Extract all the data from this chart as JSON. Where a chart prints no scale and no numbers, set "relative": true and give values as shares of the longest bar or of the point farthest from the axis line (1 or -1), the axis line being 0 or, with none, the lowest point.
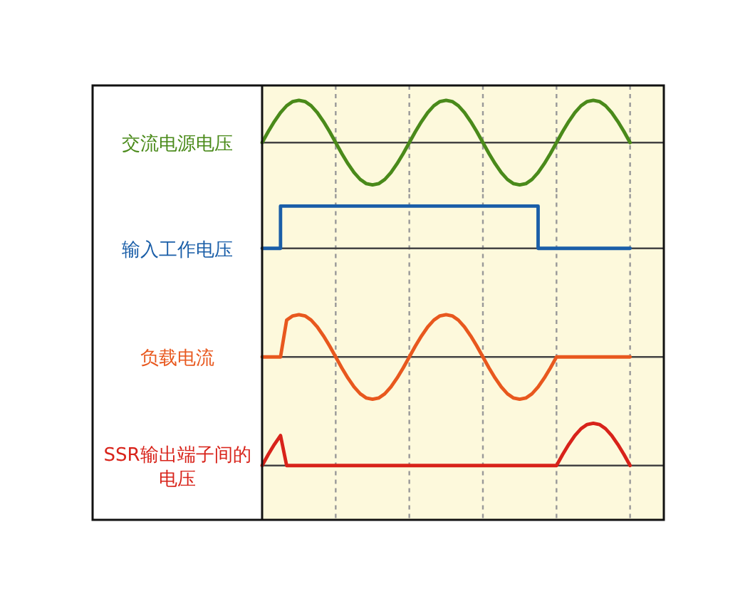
{
  "chart_data": [
    {
      "type": "line",
      "relative": true,
      "grid": "x",
      "ylabel": "交流电源电压",
      "color": "#4a8a1a",
      "categories": [
        null,
        null,
        null,
        null,
        null,
        null,
        null,
        null,
        null,
        null,
        null,
        null,
        null,
        null,
        null,
        null,
        null,
        null,
        null,
        null,
        null,
        null,
        null,
        null,
        null,
        null,
        null,
        null,
        null,
        null,
        null,
        null,
        null,
        null,
        null,
        null,
        null,
        null,
        null,
        null,
        null,
        null,
        null,
        null,
        null,
        null,
        null,
        null,
        null,
        null,
        null,
        null,
        null,
        null,
        null,
        null,
        null,
        null,
        null,
        null,
        null,
        null,
        null,
        null,
        null,
        null
      ],
      "values": [
        0,
        0.26,
        0.5,
        0.71,
        0.87,
        0.97,
        1,
        0.97,
        0.87,
        0.71,
        0.5,
        0.26,
        0,
        -0.26,
        -0.5,
        -0.71,
        -0.87,
        -0.97,
        -1,
        -0.97,
        -0.87,
        -0.71,
        -0.5,
        -0.26,
        0,
        0.26,
        0.5,
        0.71,
        0.87,
        0.97,
        1,
        0.97,
        0.87,
        0.71,
        0.5,
        0.26,
        0,
        -0.26,
        -0.5,
        -0.71,
        -0.87,
        -0.97,
        -1,
        -0.97,
        -0.87,
        -0.71,
        -0.5,
        -0.26,
        0,
        0.26,
        0.5,
        0.71,
        0.87,
        0.97,
        1,
        0.97,
        0.87,
        0.71,
        0.5,
        0.26,
        0,
        null,
        null,
        null,
        null,
        null
      ]
    },
    {
      "type": "step",
      "relative": true,
      "grid": "x",
      "ylabel": "输入工作电压",
      "color": "#1a5ea8",
      "categories": [
        null,
        null,
        null,
        null,
        null,
        null,
        null,
        null,
        null,
        null,
        null,
        null,
        null,
        null,
        null,
        null,
        null,
        null,
        null,
        null,
        null,
        null,
        null,
        null,
        null,
        null,
        null,
        null,
        null,
        null,
        null,
        null,
        null,
        null,
        null,
        null,
        null,
        null,
        null,
        null,
        null,
        null,
        null,
        null,
        null,
        null,
        null,
        null,
        null,
        null,
        null,
        null,
        null,
        null,
        null,
        null,
        null,
        null,
        null,
        null,
        null,
        null,
        null,
        null,
        null,
        null
      ],
      "values": [
        0,
        0,
        0,
        1,
        1,
        1,
        1,
        1,
        1,
        1,
        1,
        1,
        1,
        1,
        1,
        1,
        1,
        1,
        1,
        1,
        1,
        1,
        1,
        1,
        1,
        1,
        1,
        1,
        1,
        1,
        1,
        1,
        1,
        1,
        1,
        1,
        1,
        1,
        1,
        1,
        1,
        1,
        1,
        1,
        1,
        0,
        0,
        0,
        0,
        0,
        0,
        0,
        0,
        0,
        0,
        0,
        0,
        0,
        0,
        0,
        0,
        null,
        null,
        null,
        null,
        null
      ]
    },
    {
      "type": "line",
      "relative": true,
      "grid": "x",
      "ylabel": "负载电流",
      "color": "#e8581e",
      "categories": [
        null,
        null,
        null,
        null,
        null,
        null,
        null,
        null,
        null,
        null,
        null,
        null,
        null,
        null,
        null,
        null,
        null,
        null,
        null,
        null,
        null,
        null,
        null,
        null,
        null,
        null,
        null,
        null,
        null,
        null,
        null,
        null,
        null,
        null,
        null,
        null,
        null,
        null,
        null,
        null,
        null,
        null,
        null,
        null,
        null,
        null,
        null,
        null,
        null,
        null,
        null,
        null,
        null,
        null,
        null,
        null,
        null,
        null,
        null,
        null,
        null,
        null,
        null,
        null,
        null,
        null
      ],
      "values": [
        0,
        0,
        0,
        0,
        0.87,
        0.97,
        1,
        0.97,
        0.87,
        0.71,
        0.5,
        0.26,
        0,
        -0.26,
        -0.5,
        -0.71,
        -0.87,
        -0.97,
        -1,
        -0.97,
        -0.87,
        -0.71,
        -0.5,
        -0.26,
        0,
        0.26,
        0.5,
        0.71,
        0.87,
        0.97,
        1,
        0.97,
        0.87,
        0.71,
        0.5,
        0.26,
        0,
        -0.26,
        -0.5,
        -0.71,
        -0.87,
        -0.97,
        -1,
        -0.97,
        -0.87,
        -0.71,
        -0.5,
        -0.26,
        0,
        0,
        0,
        0,
        0,
        0,
        0,
        0,
        0,
        0,
        0,
        0,
        0,
        null,
        null,
        null,
        null,
        null
      ]
    },
    {
      "type": "line",
      "relative": true,
      "grid": "x",
      "ylabel": "SSR输出端子间的电压",
      "color": "#d8231a",
      "categories": [
        null,
        null,
        null,
        null,
        null,
        null,
        null,
        null,
        null,
        null,
        null,
        null,
        null,
        null,
        null,
        null,
        null,
        null,
        null,
        null,
        null,
        null,
        null,
        null,
        null,
        null,
        null,
        null,
        null,
        null,
        null,
        null,
        null,
        null,
        null,
        null,
        null,
        null,
        null,
        null,
        null,
        null,
        null,
        null,
        null,
        null,
        null,
        null,
        null,
        null,
        null,
        null,
        null,
        null,
        null,
        null,
        null,
        null,
        null,
        null,
        null,
        null,
        null,
        null,
        null,
        null
      ],
      "values": [
        0,
        0.26,
        0.5,
        0.71,
        0,
        0,
        0,
        0,
        0,
        0,
        0,
        0,
        0,
        0,
        0,
        0,
        0,
        0,
        0,
        0,
        0,
        0,
        0,
        0,
        0,
        0,
        0,
        0,
        0,
        0,
        0,
        0,
        0,
        0,
        0,
        0,
        0,
        0,
        0,
        0,
        0,
        0,
        0,
        0,
        0,
        0,
        0,
        0,
        0,
        0.26,
        0.5,
        0.71,
        0.87,
        0.97,
        1,
        0.97,
        0.87,
        0.71,
        0.5,
        0.26,
        0,
        null,
        null,
        null,
        null,
        null
      ]
    }
  ]
}
